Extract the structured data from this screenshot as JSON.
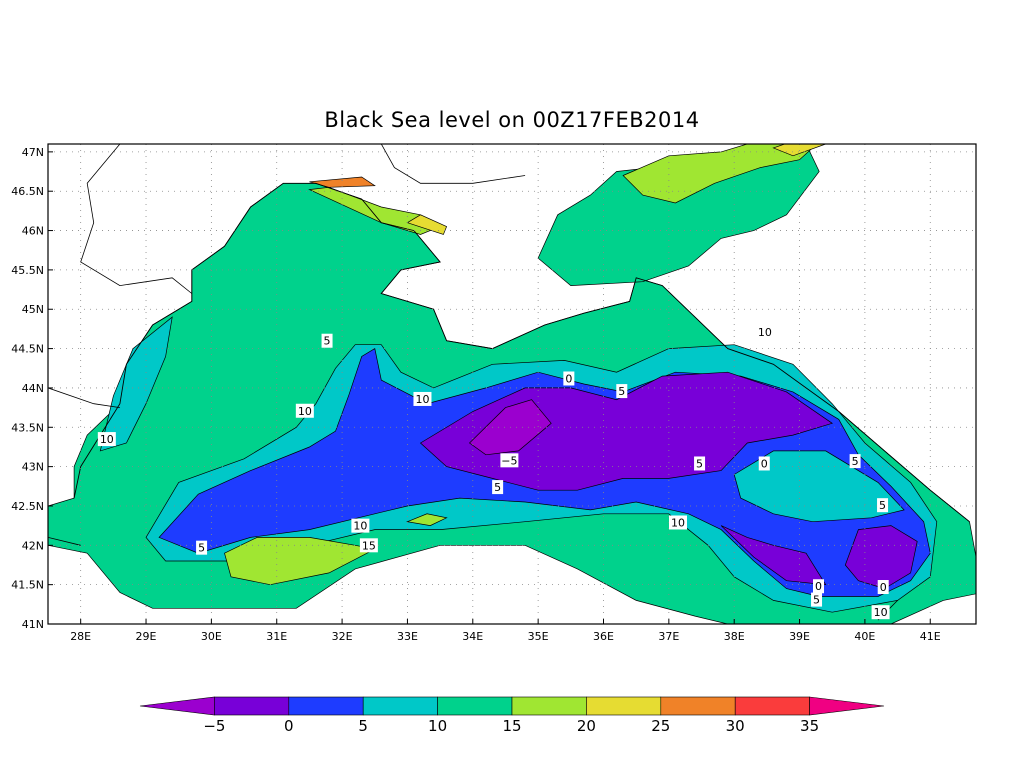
{
  "title": "Black Sea level on 00Z17FEB2014",
  "map": {
    "lon_range": [
      27.5,
      41.7
    ],
    "lat_range": [
      41.0,
      47.1
    ],
    "lon_ticks": [
      "28E",
      "29E",
      "30E",
      "31E",
      "32E",
      "33E",
      "34E",
      "35E",
      "36E",
      "37E",
      "38E",
      "39E",
      "40E",
      "41E"
    ],
    "lat_ticks": [
      "41N",
      "41.5N",
      "42N",
      "42.5N",
      "43N",
      "43.5N",
      "44N",
      "44.5N",
      "45N",
      "45.5N",
      "46N",
      "46.5N",
      "47N"
    ],
    "grid": "dotted",
    "contour_labels": [
      {
        "text": "5",
        "lon": 31.77,
        "lat": 44.6
      },
      {
        "text": "10",
        "lon": 31.43,
        "lat": 43.71
      },
      {
        "text": "10",
        "lon": 28.4,
        "lat": 43.35
      },
      {
        "text": "0",
        "lon": 35.47,
        "lat": 44.12
      },
      {
        "text": "5",
        "lon": 36.28,
        "lat": 43.96
      },
      {
        "text": "10",
        "lon": 33.23,
        "lat": 43.86
      },
      {
        "text": "-5",
        "lon": 34.56,
        "lat": 43.08
      },
      {
        "text": "5",
        "lon": 37.47,
        "lat": 43.04
      },
      {
        "text": "0",
        "lon": 38.46,
        "lat": 43.04
      },
      {
        "text": "10",
        "lon": 38.47,
        "lat": 44.71
      },
      {
        "text": "5",
        "lon": 34.38,
        "lat": 42.74
      },
      {
        "text": "5",
        "lon": 39.85,
        "lat": 43.07
      },
      {
        "text": "5",
        "lon": 40.27,
        "lat": 42.51
      },
      {
        "text": "10",
        "lon": 32.28,
        "lat": 42.25
      },
      {
        "text": "15",
        "lon": 32.41,
        "lat": 42.0
      },
      {
        "text": "5",
        "lon": 29.85,
        "lat": 41.97
      },
      {
        "text": "10",
        "lon": 37.14,
        "lat": 42.29
      },
      {
        "text": "0",
        "lon": 39.29,
        "lat": 41.48
      },
      {
        "text": "5",
        "lon": 39.26,
        "lat": 41.31
      },
      {
        "text": "0",
        "lon": 40.28,
        "lat": 41.47
      },
      {
        "text": "10",
        "lon": 40.24,
        "lat": 41.15
      }
    ]
  },
  "colorbar": {
    "labels": [
      "-5",
      "0",
      "5",
      "10",
      "15",
      "20",
      "25",
      "30",
      "35"
    ],
    "colors": [
      "#9b00cf",
      "#7800d8",
      "#1e3cff",
      "#00c8c8",
      "#00d28c",
      "#a0e632",
      "#e6dc32",
      "#f08228",
      "#fa3c3c",
      "#f00082"
    ]
  },
  "colors": {
    "land": "#ffffff",
    "coast": "#000000",
    "band_m5": "#9b00cf",
    "band_m5_0": "#7800d8",
    "band_0_5": "#1e3cff",
    "band_5_10": "#00c8c8",
    "band_10_15": "#00d28c",
    "band_15_20": "#a0e632",
    "band_20_25": "#e6dc32",
    "band_25_30": "#f08228"
  }
}
